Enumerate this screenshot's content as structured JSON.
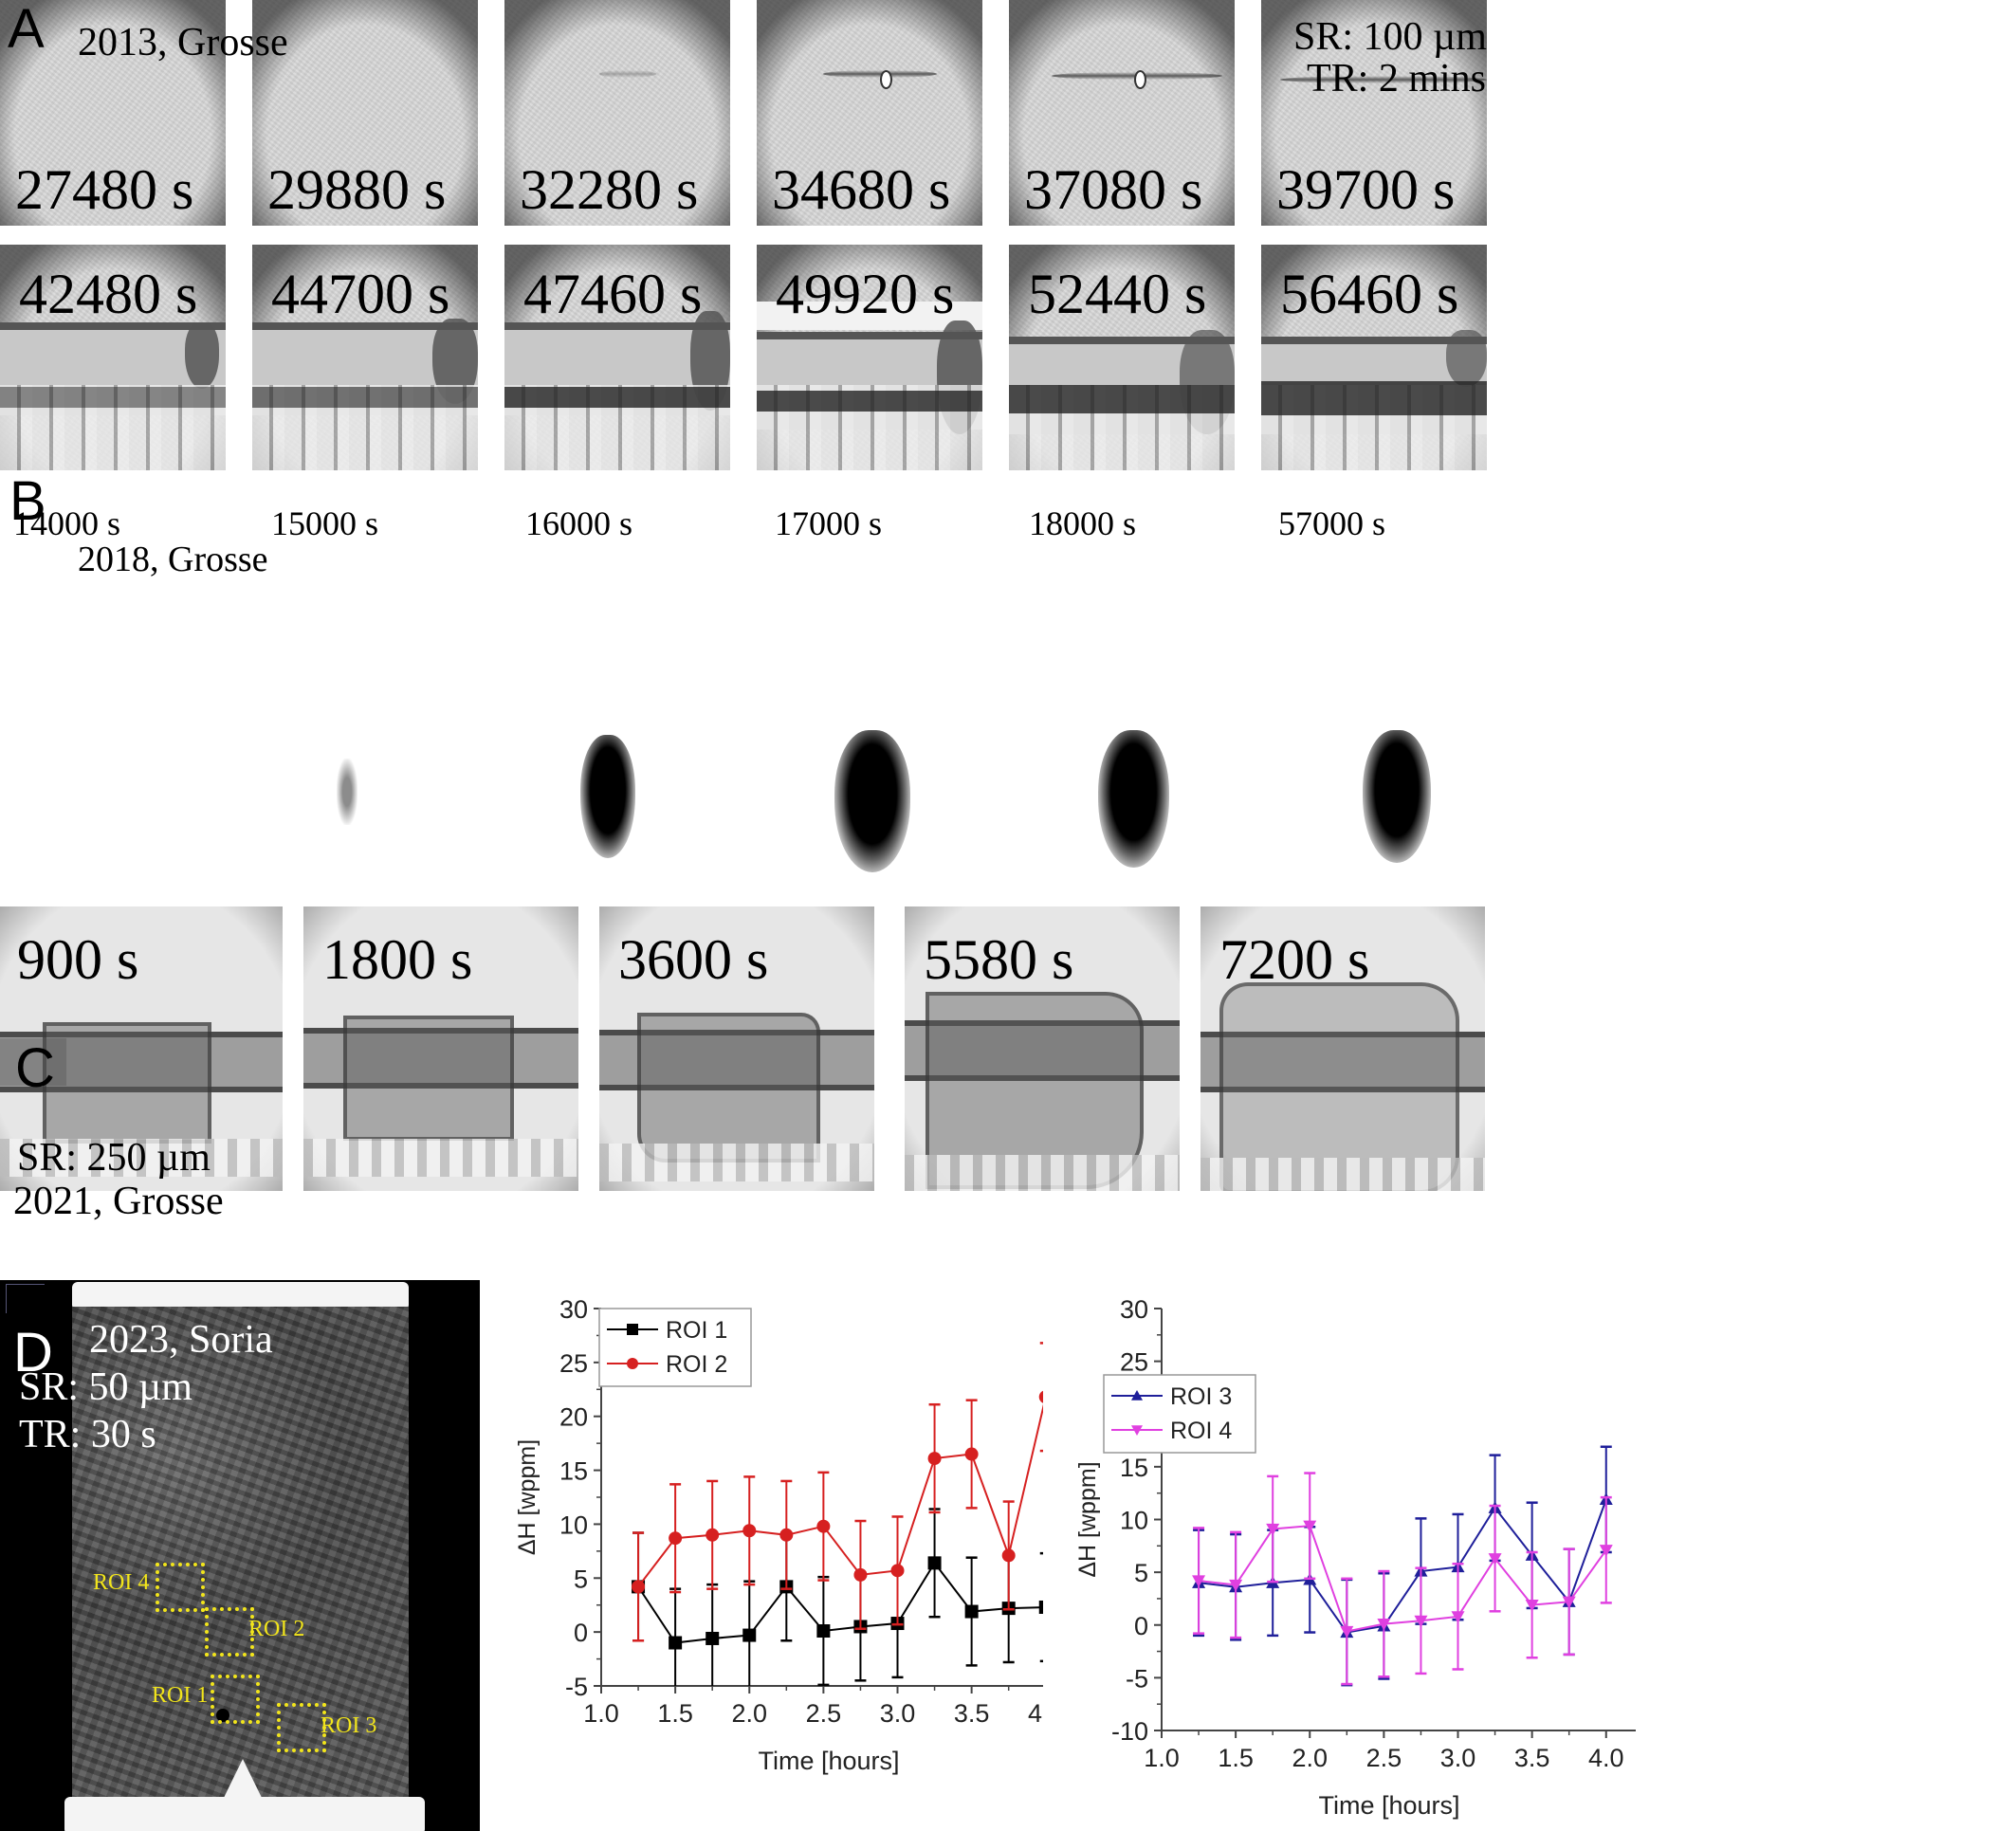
{
  "figure": {
    "panels": {
      "A": {
        "letter": "A",
        "source": "2013, Grosse",
        "spatial_resolution": "SR: 100 µm",
        "temporal_resolution": "TR: 2 mins",
        "row1": [
          "27480 s",
          "29880 s",
          "32280 s",
          "34680 s",
          "37080 s",
          "39700 s"
        ],
        "row2": [
          "42480 s",
          "44700 s",
          "47460 s",
          "49920 s",
          "52440 s",
          "56460 s"
        ]
      },
      "B": {
        "letter": "B",
        "source": "2018, Grosse",
        "times": [
          "14000 s",
          "15000 s",
          "16000 s",
          "17000 s",
          "18000 s",
          "57000 s"
        ]
      },
      "C": {
        "letter": "C",
        "source": "2021, Grosse",
        "spatial_resolution": "SR: 250 µm",
        "times": [
          "900 s",
          "1800 s",
          "3600 s",
          "5580 s",
          "7200 s"
        ]
      },
      "D": {
        "letter": "D",
        "source": "2023, Soria",
        "spatial_resolution": "SR: 50 µm",
        "temporal_resolution": "TR: 30 s",
        "roi_labels": [
          "ROI 1",
          "ROI 2",
          "ROI 3",
          "ROI 4"
        ]
      }
    }
  },
  "chart_data": [
    {
      "type": "line",
      "title": "",
      "xlabel": "Time [hours]",
      "ylabel": "ΔH [wppm]",
      "xlim": [
        1.0,
        4.2
      ],
      "ylim": [
        -5,
        30
      ],
      "xticks": [
        "1.0",
        "1.5",
        "2.0",
        "2.5",
        "3.0",
        "3.5",
        "4.0"
      ],
      "yticks": [
        "-5",
        "0",
        "5",
        "10",
        "15",
        "20",
        "25",
        "30"
      ],
      "grid": false,
      "legend_position": "top-left",
      "x": [
        1.25,
        1.5,
        1.75,
        2.0,
        2.25,
        2.5,
        2.75,
        3.0,
        3.25,
        3.5,
        3.75,
        4.0
      ],
      "series": [
        {
          "name": "ROI 1",
          "color": "#000000",
          "marker": "square",
          "values": [
            4.2,
            -1.0,
            -0.6,
            -0.3,
            4.2,
            0.1,
            0.5,
            0.8,
            6.4,
            1.9,
            2.2,
            2.3
          ],
          "errors": [
            5.0,
            5.0,
            5.0,
            5.0,
            5.0,
            5.0,
            5.0,
            5.0,
            5.0,
            5.0,
            5.0,
            5.0
          ]
        },
        {
          "name": "ROI 2",
          "color": "#d62020",
          "marker": "circle",
          "values": [
            4.2,
            8.7,
            9.0,
            9.4,
            9.0,
            9.8,
            5.3,
            5.7,
            16.1,
            16.5,
            7.1,
            21.8
          ],
          "errors": [
            5.0,
            5.0,
            5.0,
            5.0,
            5.0,
            5.0,
            5.0,
            5.0,
            5.0,
            5.0,
            5.0,
            5.0
          ]
        }
      ]
    },
    {
      "type": "line",
      "title": "",
      "xlabel": "Time [hours]",
      "ylabel": "ΔH [wppm]",
      "xlim": [
        1.0,
        4.2
      ],
      "ylim": [
        -10,
        30
      ],
      "xticks": [
        "1.0",
        "1.5",
        "2.0",
        "2.5",
        "3.0",
        "3.5",
        "4.0"
      ],
      "yticks": [
        "-10",
        "-5",
        "0",
        "5",
        "10",
        "15",
        "20",
        "25",
        "30"
      ],
      "grid": false,
      "legend_position": "upper-left",
      "x": [
        1.25,
        1.5,
        1.75,
        2.0,
        2.25,
        2.5,
        2.75,
        3.0,
        3.25,
        3.5,
        3.75,
        4.0
      ],
      "series": [
        {
          "name": "ROI 3",
          "color": "#1f1f9a",
          "marker": "triangle-up",
          "values": [
            4.0,
            3.6,
            4.0,
            4.3,
            -0.7,
            -0.1,
            5.1,
            5.5,
            11.1,
            6.6,
            2.2,
            11.9
          ],
          "errors": [
            5.0,
            5.0,
            5.0,
            5.0,
            5.0,
            5.0,
            5.0,
            5.0,
            5.0,
            5.0,
            5.0,
            5.0
          ]
        },
        {
          "name": "ROI 4",
          "color": "#e040e0",
          "marker": "triangle-down",
          "values": [
            4.2,
            3.8,
            9.1,
            9.4,
            -0.6,
            0.1,
            0.4,
            0.8,
            6.3,
            1.9,
            2.2,
            7.1
          ],
          "errors": [
            5.0,
            5.0,
            5.0,
            5.0,
            5.0,
            5.0,
            5.0,
            5.0,
            5.0,
            5.0,
            5.0,
            5.0
          ]
        }
      ]
    }
  ]
}
